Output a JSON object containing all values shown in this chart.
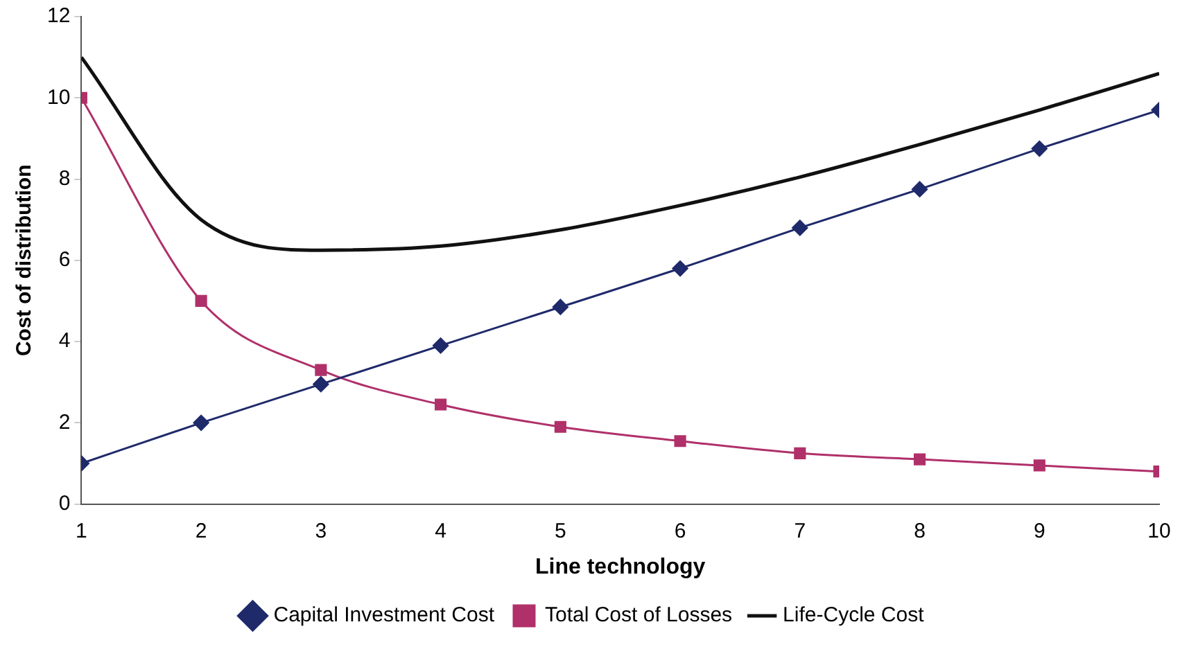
{
  "chart_data": {
    "type": "line",
    "xlabel": "Line technology",
    "ylabel": "Cost of distribution",
    "x": [
      1,
      2,
      3,
      4,
      5,
      6,
      7,
      8,
      9,
      10
    ],
    "xlim": [
      1,
      10
    ],
    "xticks": [
      1,
      2,
      3,
      4,
      5,
      6,
      7,
      8,
      9,
      10
    ],
    "ylim": [
      0,
      12
    ],
    "yticks": [
      0,
      2,
      4,
      6,
      8,
      10,
      12
    ],
    "grid": false,
    "legend": "bottom",
    "line_style": "solid",
    "series": [
      {
        "name": "Capital Investment Cost",
        "color": "#1f2a6b",
        "marker": "diamond",
        "values": [
          1,
          2,
          2.95,
          3.9,
          4.85,
          5.8,
          6.8,
          7.75,
          8.75,
          9.7
        ]
      },
      {
        "name": "Total Cost of Losses",
        "color": "#b0306a",
        "marker": "square",
        "values": [
          10,
          5,
          3.3,
          2.45,
          1.9,
          1.55,
          1.25,
          1.1,
          0.95,
          0.8
        ]
      },
      {
        "name": "Life-Cycle Cost",
        "color": "#111111",
        "marker": "none",
        "values": [
          11,
          7,
          6.25,
          6.35,
          6.75,
          7.35,
          8.05,
          8.85,
          9.7,
          10.6
        ]
      }
    ]
  }
}
